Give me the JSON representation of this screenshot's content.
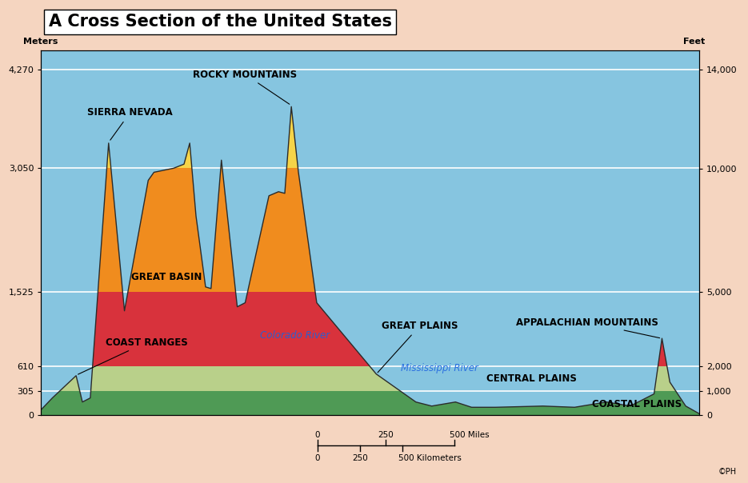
{
  "chart_data": {
    "type": "area",
    "title": "A Cross Section of the United States",
    "y_label": "Meters",
    "y2_label": "Feet",
    "x": [
      0,
      41,
      128,
      151,
      180,
      247,
      305,
      392,
      413,
      485,
      523,
      544,
      567,
      602,
      622,
      660,
      718,
      747,
      834,
      869,
      892,
      916,
      942,
      1009,
      1227,
      1372,
      1430,
      1517,
      1576,
      1663,
      1837,
      1953,
      2070,
      2157,
      2244,
      2273,
      2302,
      2360,
      2410
    ],
    "values": [
      70,
      215,
      490,
      165,
      215,
      3360,
      1290,
      2900,
      3000,
      3050,
      3100,
      3360,
      2460,
      1585,
      1565,
      3150,
      1340,
      1390,
      2710,
      2760,
      2740,
      3810,
      3000,
      1390,
      510,
      165,
      115,
      165,
      100,
      100,
      115,
      100,
      165,
      115,
      265,
      950,
      410,
      115,
      20
    ],
    "xlim": [
      0,
      2410
    ],
    "ylim": [
      0,
      4500
    ],
    "yticks": [
      0,
      305,
      610,
      {
        "value": 1525,
        "label": "1,525"
      },
      {
        "value": 3050,
        "label": "3,050"
      },
      {
        "value": 4270,
        "label": "4,270"
      }
    ],
    "y2lim": [
      0,
      14764
    ],
    "y2ticks": [
      0,
      {
        "value": 1000,
        "label": "1,000"
      },
      {
        "value": 2000,
        "label": "2,000"
      },
      {
        "value": 5000,
        "label": "5,000"
      },
      {
        "value": 10000,
        "label": "10,000"
      },
      {
        "value": 14000,
        "label": "14,000"
      }
    ],
    "grid": true,
    "tick_labels": "y",
    "bands": [
      {
        "lower": 0,
        "upper": 305,
        "color": "#4f9a55"
      },
      {
        "lower": 305,
        "upper": 610,
        "color": "#b9d08a"
      },
      {
        "lower": 610,
        "upper": 1525,
        "color": "#d8323c"
      },
      {
        "lower": 1525,
        "upper": 3050,
        "color": "#f08c1e"
      },
      {
        "lower": 3050,
        "upper": 4500,
        "color": "#f6d448"
      }
    ],
    "annotations": [
      "SIERRA NEVADA",
      "ROCKY MOUNTAINS",
      "GREAT BASIN",
      "COAST RANGES",
      "Colorado River",
      "GREAT PLAINS",
      "Mississippi River",
      "CENTRAL PLAINS",
      "APPALACHIAN MOUNTAINS",
      "COASTAL PLAINS"
    ],
    "scale_bar": {
      "miles_ticks": [
        0,
        250,
        {
          "value": 500,
          "label": "500 Miles"
        }
      ],
      "km_ticks": [
        0,
        {
          "value": 155.3,
          "label": "250"
        },
        {
          "value": 310.7,
          "label": "500 Kilometers"
        }
      ]
    },
    "credit": "©PH"
  }
}
